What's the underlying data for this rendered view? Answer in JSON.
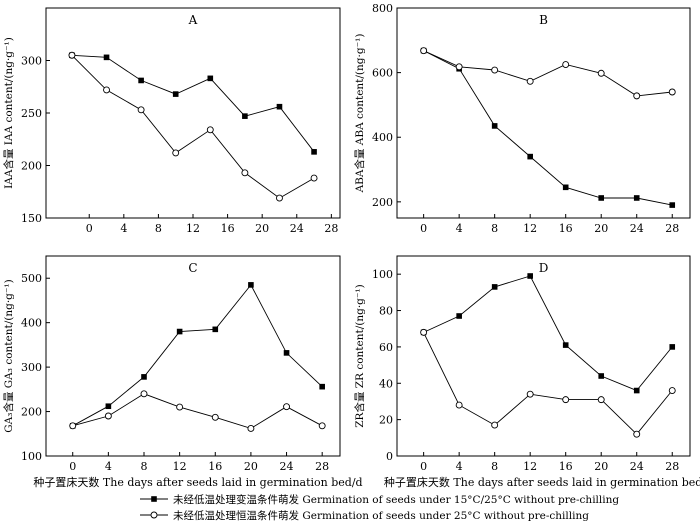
{
  "chart_data": [
    {
      "type": "line",
      "panel_label": "A",
      "ylabel": "IAA含量 IAA content/(ng·g⁻¹)",
      "xlabel": "",
      "ylim": [
        150,
        350
      ],
      "yticks": [
        150,
        200,
        250,
        300
      ],
      "xlim": [
        -5,
        29
      ],
      "xticks": [
        0,
        4,
        8,
        12,
        16,
        20,
        24,
        28
      ],
      "series": [
        {
          "name": "未经低温处理变温条件萌发 Germination of seeds under 15°C/25°C without pre-chilling",
          "marker": "square",
          "x": [
            -2,
            2,
            6,
            10,
            14,
            18,
            22,
            26
          ],
          "values": [
            305,
            303,
            281,
            268,
            283,
            247,
            256,
            213
          ]
        },
        {
          "name": "未经低温处理恒温条件萌发 Germination of seeds under 25°C without pre-chilling",
          "marker": "circle",
          "x": [
            -2,
            2,
            6,
            10,
            14,
            18,
            22,
            26
          ],
          "values": [
            305,
            272,
            253,
            212,
            234,
            193,
            169,
            188
          ]
        }
      ]
    },
    {
      "type": "line",
      "panel_label": "B",
      "ylabel": "ABA含量 ABA content/(ng·g⁻¹)",
      "xlabel": "",
      "ylim": [
        150,
        800
      ],
      "yticks": [
        200,
        400,
        600,
        800
      ],
      "xlim": [
        -3,
        30
      ],
      "xticks": [
        0,
        4,
        8,
        12,
        16,
        20,
        24,
        28
      ],
      "series": [
        {
          "name": "未经低温处理变温条件萌发 Germination of seeds under 15°C/25°C without pre-chilling",
          "marker": "square",
          "x": [
            0,
            4,
            8,
            12,
            16,
            20,
            24,
            28
          ],
          "values": [
            668,
            612,
            435,
            340,
            245,
            212,
            212,
            190
          ]
        },
        {
          "name": "未经低温处理恒温条件萌发 Germination of seeds under 25°C without pre-chilling",
          "marker": "circle",
          "x": [
            0,
            4,
            8,
            12,
            16,
            20,
            24,
            28
          ],
          "values": [
            668,
            618,
            608,
            573,
            625,
            598,
            528,
            540
          ]
        }
      ]
    },
    {
      "type": "line",
      "panel_label": "C",
      "ylabel": "GA₃含量 GA₃ content/(ng·g⁻¹)",
      "xlabel": "种子置床天数 The days after seeds laid in germination bed/d",
      "ylim": [
        100,
        550
      ],
      "yticks": [
        100,
        200,
        300,
        400,
        500
      ],
      "xlim": [
        -3,
        30
      ],
      "xticks": [
        0,
        4,
        8,
        12,
        16,
        20,
        24,
        28
      ],
      "series": [
        {
          "name": "未经低温处理变温条件萌发 Germination of seeds under 15°C/25°C without pre-chilling",
          "marker": "square",
          "x": [
            0,
            4,
            8,
            12,
            16,
            20,
            24,
            28
          ],
          "values": [
            168,
            212,
            278,
            380,
            385,
            485,
            332,
            256
          ]
        },
        {
          "name": "未经低温处理恒温条件萌发 Germination of seeds under 25°C without pre-chilling",
          "marker": "circle",
          "x": [
            0,
            4,
            8,
            12,
            16,
            20,
            24,
            28
          ],
          "values": [
            168,
            190,
            240,
            210,
            187,
            162,
            211,
            168
          ]
        }
      ]
    },
    {
      "type": "line",
      "panel_label": "D",
      "ylabel": "ZR含量 ZR content/(ng·g⁻¹)",
      "xlabel": "种子置床天数 The days after seeds laid in germination bed/d",
      "ylim": [
        0,
        110
      ],
      "yticks": [
        0,
        20,
        40,
        60,
        80,
        100
      ],
      "xlim": [
        -3,
        30
      ],
      "xticks": [
        0,
        4,
        8,
        12,
        16,
        20,
        24,
        28
      ],
      "series": [
        {
          "name": "未经低温处理变温条件萌发 Germination of seeds under 15°C/25°C without pre-chilling",
          "marker": "square",
          "x": [
            0,
            4,
            8,
            12,
            16,
            20,
            24,
            28
          ],
          "values": [
            68,
            77,
            93,
            99,
            61,
            44,
            36,
            60
          ]
        },
        {
          "name": "未经低温处理恒温条件萌发 Germination of seeds under 25°C without pre-chilling",
          "marker": "circle",
          "x": [
            0,
            4,
            8,
            12,
            16,
            20,
            24,
            28
          ],
          "values": [
            68,
            28,
            17,
            34,
            31,
            31,
            12,
            36
          ]
        }
      ]
    }
  ],
  "legend": [
    {
      "marker": "square",
      "label": "未经低温处理变温条件萌发 Germination of seeds under 15°C/25°C without pre-chilling"
    },
    {
      "marker": "circle",
      "label": "未经低温处理恒温条件萌发 Germination of seeds under 25°C without pre-chilling"
    }
  ]
}
